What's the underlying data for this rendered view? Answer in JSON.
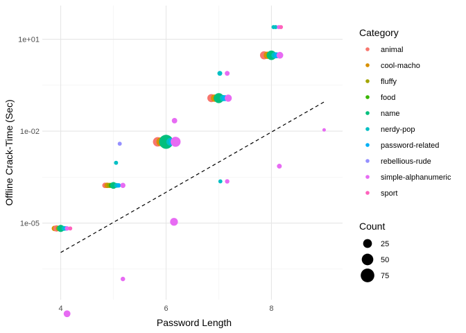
{
  "chart_data": {
    "type": "scatter",
    "xlabel": "Password Length",
    "ylabel": "Offline Crack-Time (Sec)",
    "xlim": [
      3.65,
      9.35
    ],
    "ylim_log10": [
      -7.5,
      2.1
    ],
    "x_ticks": [
      4,
      6,
      8
    ],
    "x_tick_labels": [
      "4",
      "6",
      "8"
    ],
    "y_ticks_log10": [
      -5,
      -2,
      1
    ],
    "y_tick_labels": [
      "1e-05",
      "1e-02",
      "1e+01"
    ],
    "scale_y": "log10",
    "grid": true,
    "legend_position": "right",
    "color_legend": {
      "title": "Category",
      "entries": [
        {
          "name": "animal",
          "color": "#F8766D"
        },
        {
          "name": "cool-macho",
          "color": "#D89000"
        },
        {
          "name": "fluffy",
          "color": "#A3A500"
        },
        {
          "name": "food",
          "color": "#39B600"
        },
        {
          "name": "name",
          "color": "#00BF7D"
        },
        {
          "name": "nerdy-pop",
          "color": "#00BFC4"
        },
        {
          "name": "password-related",
          "color": "#00B0F6"
        },
        {
          "name": "rebellious-rude",
          "color": "#9590FF"
        },
        {
          "name": "simple-alphanumeric",
          "color": "#E76BF3"
        },
        {
          "name": "sport",
          "color": "#FF62BC"
        }
      ]
    },
    "size_legend": {
      "title": "Count",
      "entries": [
        {
          "label": "25",
          "value": 25
        },
        {
          "label": "50",
          "value": 50
        },
        {
          "label": "75",
          "value": 75
        }
      ]
    },
    "trend_line": {
      "style": "dashed",
      "x": [
        4,
        9
      ],
      "y": [
        1.1e-06,
        0.09
      ]
    },
    "points": [
      {
        "x": 3.88,
        "y": 6.7e-06,
        "category": "cool-macho",
        "count": 6
      },
      {
        "x": 3.92,
        "y": 6.7e-06,
        "category": "animal",
        "count": 10
      },
      {
        "x": 3.96,
        "y": 6.7e-06,
        "category": "fluffy",
        "count": 6
      },
      {
        "x": 4.02,
        "y": 6.7e-06,
        "category": "food",
        "count": 5
      },
      {
        "x": 4.0,
        "y": 6.7e-06,
        "category": "name",
        "count": 14
      },
      {
        "x": 4.06,
        "y": 6.7e-06,
        "category": "nerdy-pop",
        "count": 4
      },
      {
        "x": 4.1,
        "y": 6.7e-06,
        "category": "password-related",
        "count": 3
      },
      {
        "x": 4.12,
        "y": 6.7e-06,
        "category": "simple-alphanumeric",
        "count": 3
      },
      {
        "x": 4.18,
        "y": 6.7e-06,
        "category": "sport",
        "count": 2
      },
      {
        "x": 4.12,
        "y": 1.1e-08,
        "category": "simple-alphanumeric",
        "count": 12
      },
      {
        "x": 4.84,
        "y": 0.00017,
        "category": "animal",
        "count": 6
      },
      {
        "x": 4.88,
        "y": 0.00017,
        "category": "cool-macho",
        "count": 6
      },
      {
        "x": 4.92,
        "y": 0.00017,
        "category": "fluffy",
        "count": 5
      },
      {
        "x": 4.96,
        "y": 0.00017,
        "category": "food",
        "count": 5
      },
      {
        "x": 5.0,
        "y": 0.00017,
        "category": "name",
        "count": 12
      },
      {
        "x": 5.06,
        "y": 0.00017,
        "category": "nerdy-pop",
        "count": 4
      },
      {
        "x": 5.1,
        "y": 0.00017,
        "category": "password-related",
        "count": 3
      },
      {
        "x": 5.18,
        "y": 0.00017,
        "category": "simple-alphanumeric",
        "count": 5
      },
      {
        "x": 5.05,
        "y": 0.00093,
        "category": "nerdy-pop",
        "count": 2
      },
      {
        "x": 5.12,
        "y": 0.0039,
        "category": "rebellious-rude",
        "count": 2
      },
      {
        "x": 5.18,
        "y": 1.5e-07,
        "category": "simple-alphanumeric",
        "count": 3
      },
      {
        "x": 5.84,
        "y": 0.0045,
        "category": "animal",
        "count": 30
      },
      {
        "x": 5.9,
        "y": 0.0045,
        "category": "cool-macho",
        "count": 25
      },
      {
        "x": 5.96,
        "y": 0.0045,
        "category": "fluffy",
        "count": 20
      },
      {
        "x": 6.02,
        "y": 0.0045,
        "category": "food",
        "count": 30
      },
      {
        "x": 6.0,
        "y": 0.0045,
        "category": "name",
        "count": 80
      },
      {
        "x": 6.08,
        "y": 0.0045,
        "category": "nerdy-pop",
        "count": 18
      },
      {
        "x": 6.12,
        "y": 0.0045,
        "category": "password-related",
        "count": 14
      },
      {
        "x": 6.18,
        "y": 0.0045,
        "category": "simple-alphanumeric",
        "count": 35
      },
      {
        "x": 6.16,
        "y": 0.022,
        "category": "simple-alphanumeric",
        "count": 6
      },
      {
        "x": 6.15,
        "y": 1.1e-05,
        "category": "simple-alphanumeric",
        "count": 18
      },
      {
        "x": 6.86,
        "y": 0.12,
        "category": "animal",
        "count": 20
      },
      {
        "x": 6.92,
        "y": 0.12,
        "category": "cool-macho",
        "count": 15
      },
      {
        "x": 6.96,
        "y": 0.12,
        "category": "fluffy",
        "count": 12
      },
      {
        "x": 7.02,
        "y": 0.12,
        "category": "food",
        "count": 20
      },
      {
        "x": 7.0,
        "y": 0.12,
        "category": "name",
        "count": 35
      },
      {
        "x": 7.08,
        "y": 0.12,
        "category": "nerdy-pop",
        "count": 10
      },
      {
        "x": 7.12,
        "y": 0.12,
        "category": "password-related",
        "count": 8
      },
      {
        "x": 7.18,
        "y": 0.12,
        "category": "simple-alphanumeric",
        "count": 14
      },
      {
        "x": 7.02,
        "y": 0.77,
        "category": "nerdy-pop",
        "count": 4
      },
      {
        "x": 7.16,
        "y": 0.77,
        "category": "simple-alphanumeric",
        "count": 4
      },
      {
        "x": 7.03,
        "y": 0.00023,
        "category": "nerdy-pop",
        "count": 2
      },
      {
        "x": 7.16,
        "y": 0.00023,
        "category": "simple-alphanumeric",
        "count": 3
      },
      {
        "x": 7.86,
        "y": 3.0,
        "category": "animal",
        "count": 20
      },
      {
        "x": 7.92,
        "y": 3.0,
        "category": "cool-macho",
        "count": 15
      },
      {
        "x": 7.96,
        "y": 3.0,
        "category": "fluffy",
        "count": 12
      },
      {
        "x": 8.02,
        "y": 3.0,
        "category": "food",
        "count": 20
      },
      {
        "x": 8.0,
        "y": 3.0,
        "category": "name",
        "count": 30
      },
      {
        "x": 8.06,
        "y": 3.0,
        "category": "nerdy-pop",
        "count": 10
      },
      {
        "x": 8.1,
        "y": 3.0,
        "category": "password-related",
        "count": 8
      },
      {
        "x": 8.16,
        "y": 3.0,
        "category": "simple-alphanumeric",
        "count": 12
      },
      {
        "x": 8.04,
        "y": 25.0,
        "category": "nerdy-pop",
        "count": 2
      },
      {
        "x": 8.08,
        "y": 25.0,
        "category": "nerdy-pop",
        "count": 2
      },
      {
        "x": 8.14,
        "y": 25.0,
        "category": "simple-alphanumeric",
        "count": 2
      },
      {
        "x": 8.18,
        "y": 25.0,
        "category": "sport",
        "count": 2
      },
      {
        "x": 8.15,
        "y": 0.00072,
        "category": "simple-alphanumeric",
        "count": 4
      },
      {
        "x": 9.0,
        "y": 0.011,
        "category": "simple-alphanumeric",
        "count": 1
      }
    ]
  }
}
